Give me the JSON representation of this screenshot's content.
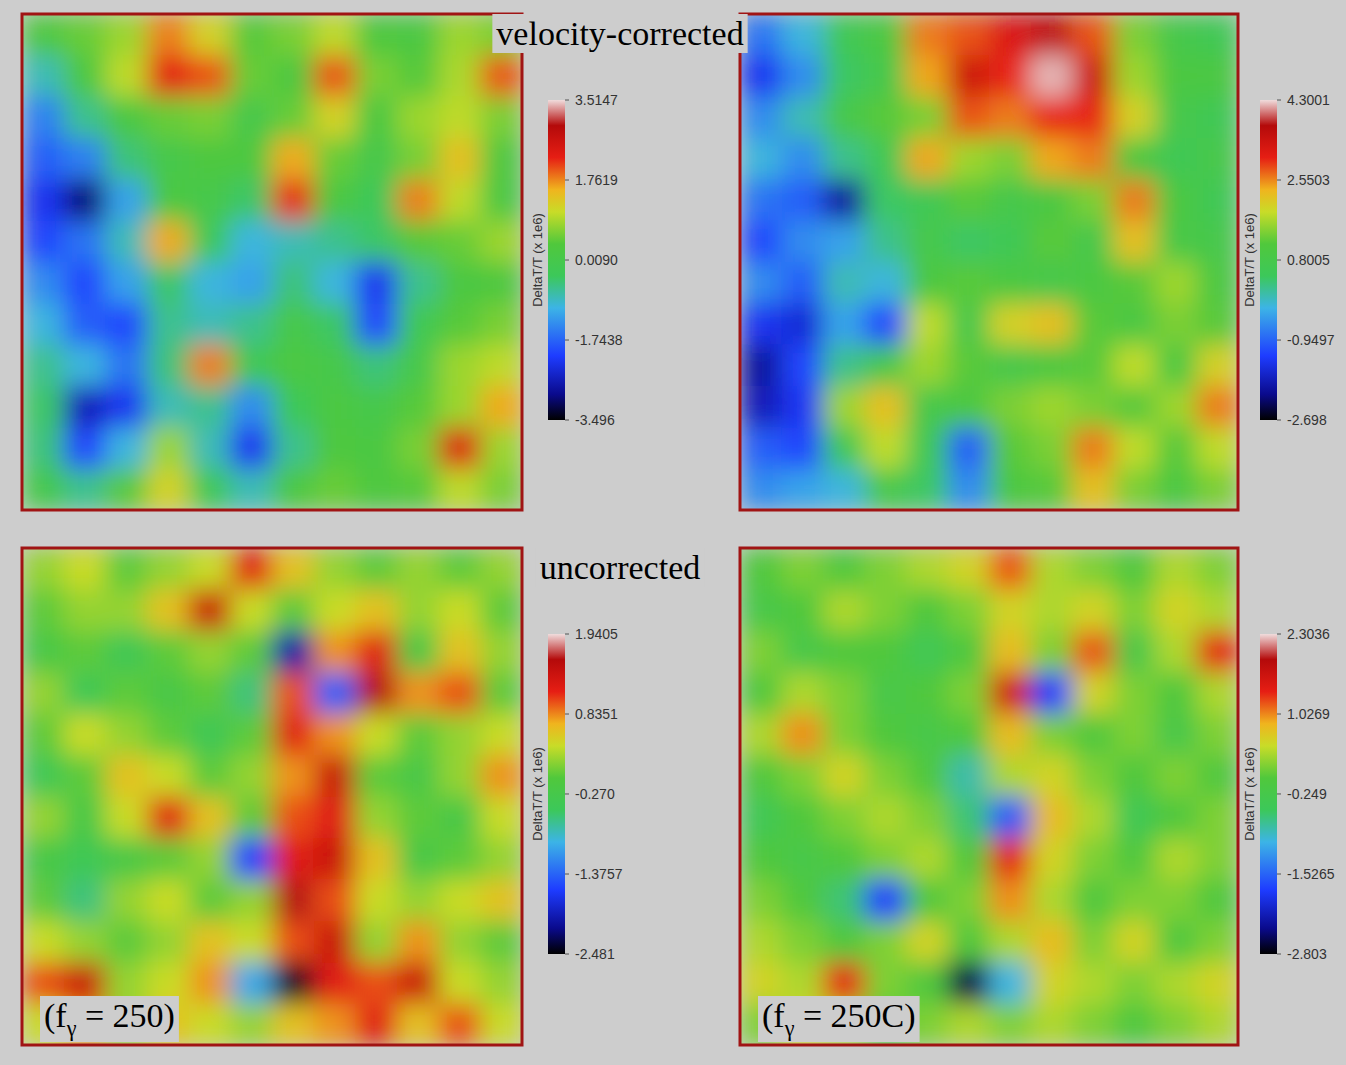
{
  "chart_data": [
    {
      "type": "heatmap",
      "title": "velocity-corrected",
      "colorbar_label": "DeltaT/T (x 1e6)",
      "tick_labels": false,
      "color_range": [
        -3.496,
        3.5147
      ],
      "color_ticks": [
        3.5147,
        1.7619,
        {
          "value": 0.009,
          "label": "0.0090"
        },
        -1.7438,
        -3.496
      ],
      "cells": [
        [
          0.3,
          0.5,
          0.8,
          1.8,
          1.2,
          0.4,
          0.6,
          1.0,
          0.3,
          0.2,
          0.8,
          0.6
        ],
        [
          -0.8,
          0.2,
          1.0,
          2.3,
          2.0,
          0.5,
          0.3,
          2.0,
          0.6,
          0.4,
          0.9,
          2.0
        ],
        [
          -1.5,
          -0.6,
          0.2,
          0.5,
          0.6,
          0.0,
          0.5,
          1.2,
          0.2,
          0.8,
          1.0,
          0.6
        ],
        [
          -1.8,
          -1.5,
          -0.5,
          0.0,
          0.3,
          0.3,
          1.6,
          0.5,
          0.0,
          0.6,
          1.4,
          0.3
        ],
        [
          -2.2,
          -3.0,
          -1.2,
          0.2,
          0.0,
          -0.4,
          2.2,
          0.2,
          -0.3,
          1.8,
          1.0,
          0.2
        ],
        [
          -2.0,
          -1.6,
          -0.8,
          1.6,
          -0.3,
          -1.0,
          -0.8,
          -0.6,
          -0.4,
          0.4,
          0.5,
          0.8
        ],
        [
          -1.4,
          -2.0,
          -1.2,
          -0.4,
          -1.0,
          -1.2,
          -0.5,
          -1.0,
          -2.2,
          -0.6,
          0.2,
          0.3
        ],
        [
          -1.0,
          -1.8,
          -2.0,
          -0.6,
          -0.8,
          -0.6,
          0.0,
          -0.4,
          -2.0,
          -0.2,
          0.4,
          0.6
        ],
        [
          -0.6,
          -1.0,
          -1.6,
          -0.5,
          1.8,
          -0.2,
          0.2,
          0.0,
          -0.5,
          0.0,
          0.8,
          1.0
        ],
        [
          -0.4,
          -2.6,
          -2.2,
          -0.8,
          -0.6,
          -1.4,
          -0.3,
          0.2,
          0.0,
          0.4,
          0.8,
          1.6
        ],
        [
          -0.5,
          -2.0,
          -1.0,
          0.8,
          -0.8,
          -2.2,
          -0.6,
          0.3,
          0.2,
          0.6,
          2.4,
          0.8
        ],
        [
          0.0,
          -0.6,
          0.4,
          1.2,
          -0.2,
          -0.8,
          0.2,
          0.5,
          0.3,
          0.4,
          1.0,
          0.6
        ]
      ]
    },
    {
      "type": "heatmap",
      "colorbar_label": "DeltaT/T (x 1e6)",
      "tick_labels": false,
      "color_range": [
        -2.698,
        4.3001
      ],
      "color_ticks": [
        4.3001,
        2.5503,
        0.8005,
        -0.9497,
        -2.698
      ],
      "cells": [
        [
          -0.8,
          -0.2,
          0.6,
          1.0,
          2.6,
          2.8,
          3.2,
          3.6,
          2.8,
          1.4,
          0.8,
          0.6
        ],
        [
          -1.4,
          -0.6,
          0.4,
          0.8,
          2.4,
          3.4,
          3.0,
          4.2,
          3.4,
          1.6,
          1.0,
          1.0
        ],
        [
          -0.6,
          0.0,
          0.8,
          1.2,
          1.4,
          2.8,
          2.6,
          3.0,
          3.0,
          2.0,
          0.8,
          0.6
        ],
        [
          -0.2,
          -0.6,
          0.2,
          0.6,
          2.4,
          1.6,
          1.4,
          2.4,
          2.6,
          1.0,
          0.6,
          0.8
        ],
        [
          -0.8,
          -1.0,
          -2.0,
          0.4,
          0.6,
          1.2,
          0.8,
          1.0,
          1.4,
          2.6,
          1.0,
          0.6
        ],
        [
          -1.2,
          -0.6,
          -0.4,
          0.2,
          0.8,
          0.4,
          0.6,
          1.2,
          0.8,
          2.2,
          0.9,
          0.8
        ],
        [
          -0.6,
          -1.0,
          0.0,
          -0.2,
          1.0,
          1.2,
          1.0,
          0.8,
          1.0,
          1.2,
          1.6,
          1.0
        ],
        [
          -1.4,
          -1.6,
          -0.4,
          -1.2,
          1.8,
          0.8,
          2.0,
          2.2,
          1.2,
          1.0,
          1.4,
          1.2
        ],
        [
          -2.0,
          -1.2,
          0.2,
          0.8,
          1.6,
          1.2,
          0.8,
          1.0,
          1.2,
          1.8,
          1.0,
          2.0
        ],
        [
          -1.8,
          -1.4,
          1.6,
          2.2,
          0.8,
          1.0,
          1.4,
          1.6,
          1.4,
          1.2,
          1.6,
          2.6
        ],
        [
          -1.0,
          -1.2,
          0.6,
          1.8,
          0.6,
          -1.0,
          1.2,
          1.4,
          2.6,
          1.8,
          1.2,
          1.8
        ],
        [
          -0.6,
          -0.4,
          -0.2,
          0.8,
          0.4,
          -0.6,
          1.0,
          1.2,
          2.2,
          1.4,
          1.0,
          1.4
        ]
      ]
    },
    {
      "type": "heatmap",
      "title": "uncorrected",
      "annotation": "(fγ = 250)",
      "colorbar_label": "DeltaT/T (x 1e6)",
      "tick_labels": false,
      "color_range": [
        -2.481,
        1.9405
      ],
      "color_ticks": [
        1.9405,
        0.8351,
        {
          "value": -0.27,
          "label": "-0.270"
        },
        -1.3757,
        -2.481
      ],
      "cells": [
        [
          0.2,
          0.4,
          0.0,
          0.2,
          0.4,
          1.2,
          0.6,
          0.2,
          0.0,
          0.2,
          0.0,
          0.2
        ],
        [
          0.0,
          0.2,
          0.2,
          0.6,
          1.4,
          0.4,
          0.0,
          0.4,
          0.6,
          0.2,
          0.4,
          0.0
        ],
        [
          -0.2,
          0.0,
          -0.4,
          0.0,
          0.2,
          0.0,
          -2.0,
          0.8,
          1.2,
          -0.2,
          0.6,
          0.2
        ],
        [
          0.2,
          -0.4,
          0.0,
          -0.2,
          0.0,
          -0.6,
          1.0,
          -1.4,
          1.6,
          0.8,
          1.0,
          0.0
        ],
        [
          0.0,
          0.4,
          0.2,
          0.0,
          -0.4,
          0.0,
          1.2,
          0.8,
          0.4,
          0.0,
          0.2,
          0.4
        ],
        [
          -0.4,
          0.0,
          0.6,
          0.4,
          0.0,
          0.2,
          0.8,
          1.4,
          0.0,
          -0.2,
          0.2,
          0.8
        ],
        [
          0.2,
          -0.2,
          0.4,
          1.2,
          0.6,
          0.0,
          1.0,
          1.2,
          0.2,
          0.0,
          -0.2,
          0.4
        ],
        [
          -0.2,
          -0.4,
          -0.2,
          0.0,
          0.2,
          -1.6,
          1.2,
          1.4,
          0.6,
          -0.2,
          0.0,
          0.2
        ],
        [
          0.0,
          -0.6,
          0.2,
          0.4,
          0.0,
          0.2,
          1.6,
          1.0,
          0.4,
          0.2,
          0.4,
          0.6
        ],
        [
          0.4,
          0.2,
          0.0,
          0.2,
          0.6,
          0.4,
          1.0,
          1.4,
          0.2,
          0.8,
          0.2,
          0.0
        ],
        [
          1.0,
          1.4,
          0.2,
          0.4,
          0.8,
          -1.0,
          -2.4,
          1.2,
          1.0,
          1.4,
          0.4,
          0.2
        ],
        [
          0.4,
          0.8,
          0.2,
          0.6,
          0.4,
          0.2,
          0.6,
          0.8,
          1.2,
          0.6,
          1.0,
          0.4
        ]
      ]
    },
    {
      "type": "heatmap",
      "annotation": "(fγ = 250C)",
      "colorbar_label": "DeltaT/T (x 1e6)",
      "tick_labels": false,
      "color_range": [
        -2.803,
        2.3036
      ],
      "color_ticks": [
        2.3036,
        1.0269,
        -0.249,
        -1.5265,
        -2.803
      ],
      "cells": [
        [
          0.0,
          0.2,
          0.0,
          0.2,
          0.4,
          0.6,
          1.2,
          0.4,
          0.2,
          0.0,
          0.4,
          0.2
        ],
        [
          -0.2,
          0.0,
          0.4,
          0.2,
          0.0,
          0.2,
          0.6,
          0.4,
          0.6,
          0.2,
          0.6,
          0.4
        ],
        [
          0.2,
          -0.2,
          0.0,
          0.0,
          -0.4,
          0.0,
          0.8,
          0.2,
          1.2,
          -0.2,
          0.4,
          1.4
        ],
        [
          0.0,
          0.4,
          0.2,
          -0.2,
          0.0,
          0.2,
          1.6,
          -1.8,
          0.6,
          0.2,
          0.0,
          0.4
        ],
        [
          0.4,
          1.0,
          0.2,
          0.0,
          -0.2,
          0.0,
          0.8,
          0.2,
          0.0,
          0.2,
          -0.2,
          0.2
        ],
        [
          0.0,
          0.2,
          0.6,
          0.2,
          0.0,
          -0.8,
          0.4,
          0.6,
          0.2,
          0.0,
          0.2,
          0.0
        ],
        [
          -0.4,
          0.0,
          0.2,
          0.4,
          0.2,
          -0.6,
          -1.6,
          0.8,
          0.4,
          -0.4,
          0.0,
          0.2
        ],
        [
          0.0,
          -0.2,
          0.0,
          0.2,
          0.4,
          0.0,
          1.4,
          0.6,
          0.2,
          0.0,
          0.4,
          0.2
        ],
        [
          0.2,
          0.0,
          -0.6,
          -1.8,
          0.0,
          0.2,
          1.0,
          0.4,
          0.0,
          0.2,
          0.2,
          0.0
        ],
        [
          0.4,
          0.2,
          0.0,
          0.2,
          0.6,
          0.0,
          0.4,
          0.8,
          0.2,
          0.6,
          0.0,
          0.2
        ],
        [
          0.6,
          0.4,
          1.4,
          0.2,
          0.0,
          -2.6,
          -1.0,
          0.6,
          0.4,
          0.2,
          0.4,
          0.6
        ],
        [
          0.2,
          0.6,
          0.4,
          0.0,
          0.2,
          0.4,
          0.2,
          0.4,
          0.2,
          0.0,
          0.2,
          0.4
        ]
      ]
    }
  ]
}
